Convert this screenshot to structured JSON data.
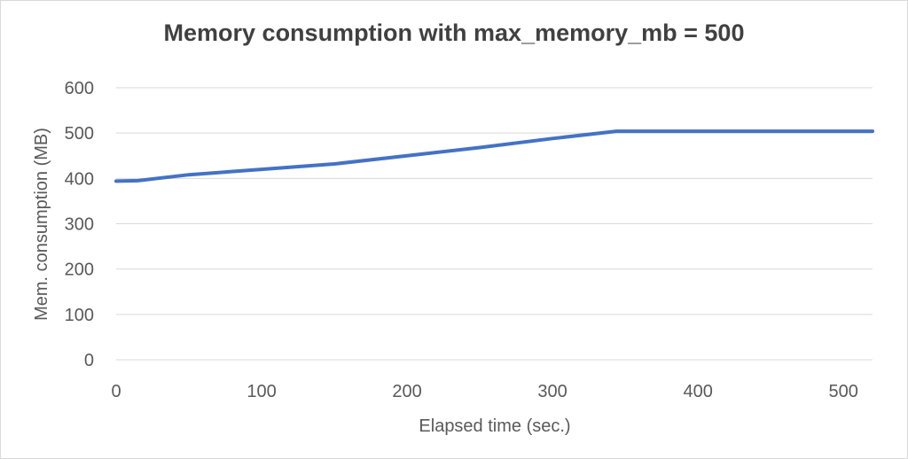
{
  "chart_data": {
    "type": "line",
    "title": "Memory consumption with max_memory_mb = 500",
    "xlabel": "Elapsed time (sec.)",
    "ylabel": "Mem. consumption (MB)",
    "xlim": [
      0,
      520
    ],
    "ylim": [
      0,
      600
    ],
    "xticks": [
      0,
      100,
      200,
      300,
      400,
      500
    ],
    "yticks": [
      0,
      100,
      200,
      300,
      400,
      500,
      600
    ],
    "grid": true,
    "legend": "none",
    "series": [
      {
        "color": "#4472c4",
        "points": [
          [
            0,
            394
          ],
          [
            15,
            395
          ],
          [
            50,
            408
          ],
          [
            100,
            420
          ],
          [
            150,
            432
          ],
          [
            200,
            450
          ],
          [
            250,
            468
          ],
          [
            300,
            488
          ],
          [
            344,
            504
          ],
          [
            520,
            504
          ]
        ]
      }
    ]
  }
}
